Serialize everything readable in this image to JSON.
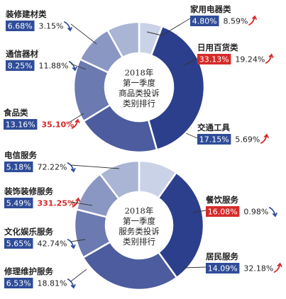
{
  "colors": {
    "light": "#e6ecf7",
    "dark": "#2c3f8c",
    "label_box": "#2f4c98",
    "highlight_box": "#d62a2a",
    "up_arrow": "#d62a2a",
    "down_arrow": "#2f4c98",
    "leader": "#333333"
  },
  "chart_data": [
    {
      "type": "pie",
      "title": "2018年 第一季度 商品类投诉 类别排行",
      "title_lines": [
        "2018年",
        "第一季度",
        "商品类投诉",
        "类别排行"
      ],
      "slices": [
        {
          "label": "家用电器类",
          "share": "4.80%",
          "share_value": 4.8,
          "change": "8.59%",
          "change_value": 8.59,
          "direction": "up",
          "highlight": false
        },
        {
          "label": "日用百货类",
          "share": "33.13%",
          "share_value": 33.13,
          "change": "19.24%",
          "change_value": 19.24,
          "direction": "up",
          "highlight": true
        },
        {
          "label": "交通工具",
          "share": "17.15%",
          "share_value": 17.15,
          "change": "5.69%",
          "change_value": 5.69,
          "direction": "up",
          "highlight": false
        },
        {
          "label": "食品类",
          "share": "13.16%",
          "share_value": 13.16,
          "change": "35.10%",
          "change_value": 35.1,
          "direction": "up",
          "highlight": false,
          "change_red": true
        },
        {
          "label": "通信器材",
          "share": "8.25%",
          "share_value": 8.25,
          "change": "11.88%",
          "change_value": 11.88,
          "direction": "down",
          "highlight": false
        },
        {
          "label": "装修建材类",
          "share": "6.68%",
          "share_value": 6.68,
          "change": "3.15%",
          "change_value": 3.15,
          "direction": "down",
          "highlight": false
        }
      ]
    },
    {
      "type": "pie",
      "title": "2018年 第一季度 服务类投诉 类别排行",
      "title_lines": [
        "2018年",
        "第一季度",
        "服务类投诉",
        "类别排行"
      ],
      "slices": [
        {
          "label": "电信服务",
          "share": "5.18%",
          "share_value": 5.18,
          "change": "72.22%",
          "change_value": 72.22,
          "direction": "down",
          "highlight": false
        },
        {
          "label": "餐饮服务",
          "share": "16.08%",
          "share_value": 16.08,
          "change": "0.98%",
          "change_value": 0.98,
          "direction": "down",
          "highlight": true
        },
        {
          "label": "居民服务",
          "share": "14.09%",
          "share_value": 14.09,
          "change": "32.18%",
          "change_value": 32.18,
          "direction": "up",
          "highlight": false
        },
        {
          "label": "修理维护服务",
          "share": "6.53%",
          "share_value": 6.53,
          "change": "18.81%",
          "change_value": 18.81,
          "direction": "down",
          "highlight": false
        },
        {
          "label": "文化娱乐服务",
          "share": "5.65%",
          "share_value": 5.65,
          "change": "42.74%",
          "change_value": 42.74,
          "direction": "down",
          "highlight": false
        },
        {
          "label": "装饰装修服务",
          "share": "5.49%",
          "share_value": 5.49,
          "change": "331.25%",
          "change_value": 331.25,
          "direction": "up",
          "highlight": false,
          "change_red": true
        }
      ]
    }
  ]
}
